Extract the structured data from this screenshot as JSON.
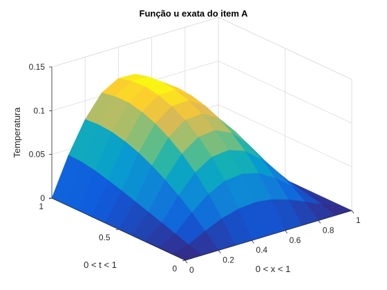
{
  "chart_data": {
    "type": "surface",
    "title": "Função u exata do item A",
    "xlabel": "0 < x < 1",
    "ylabel": "0 < t < 1",
    "zlabel": "Temperatura",
    "xlim": [
      0,
      1
    ],
    "ylim": [
      0,
      1
    ],
    "zlim": [
      0,
      0.15
    ],
    "x_ticks": [
      "0",
      "0.2",
      "0.4",
      "0.6",
      "0.8",
      "1"
    ],
    "y_ticks": [
      "0",
      "0.5",
      "1"
    ],
    "z_ticks": [
      "0",
      "0.05",
      "0.1",
      "0.15"
    ],
    "grid": true,
    "colormap": "parula",
    "x": [
      0,
      0.1,
      0.2,
      0.3,
      0.4,
      0.5,
      0.6,
      0.7,
      0.8,
      0.9,
      1.0
    ],
    "y": [
      0,
      0.1,
      0.2,
      0.3,
      0.4,
      0.5,
      0.6,
      0.7,
      0.8,
      0.9,
      1.0
    ],
    "z": [
      [
        0.0,
        0.0,
        0.0,
        0.0,
        0.0,
        0.0,
        0.0,
        0.0,
        0.0,
        0.0,
        0.0
      ],
      [
        0.0,
        0.0051,
        0.0149,
        0.0235,
        0.029,
        0.0306,
        0.0283,
        0.0224,
        0.0141,
        0.0056,
        0.0
      ],
      [
        0.0,
        0.0105,
        0.0288,
        0.0443,
        0.0538,
        0.056,
        0.0512,
        0.0402,
        0.025,
        0.0089,
        0.0
      ],
      [
        0.0,
        0.0158,
        0.0412,
        0.0618,
        0.0738,
        0.0761,
        0.0692,
        0.054,
        0.0334,
        0.0121,
        0.0
      ],
      [
        0.0,
        0.021,
        0.0521,
        0.0762,
        0.0897,
        0.0917,
        0.0829,
        0.0643,
        0.0396,
        0.0145,
        0.0
      ],
      [
        0.0,
        0.026,
        0.0613,
        0.0877,
        0.1019,
        0.1034,
        0.093,
        0.0719,
        0.0441,
        0.0163,
        0.0
      ],
      [
        0.0,
        0.031,
        0.0689,
        0.0966,
        0.1106,
        0.1115,
        0.0999,
        0.077,
        0.0471,
        0.0175,
        0.0
      ],
      [
        0.0,
        0.0356,
        0.0746,
        0.1028,
        0.1162,
        0.1166,
        0.1041,
        0.0801,
        0.0489,
        0.0182,
        0.0
      ],
      [
        0.0,
        0.0398,
        0.0784,
        0.1064,
        0.119,
        0.1188,
        0.1058,
        0.0813,
        0.0496,
        0.0185,
        0.0
      ],
      [
        0.0,
        0.0426,
        0.0798,
        0.1062,
        0.118,
        0.1174,
        0.1043,
        0.0801,
        0.0488,
        0.0182,
        0.0
      ],
      [
        0.0,
        0.0435,
        0.0787,
        0.1034,
        0.1143,
        0.1134,
        0.1006,
        0.0772,
        0.047,
        0.0175,
        0.0
      ]
    ]
  }
}
